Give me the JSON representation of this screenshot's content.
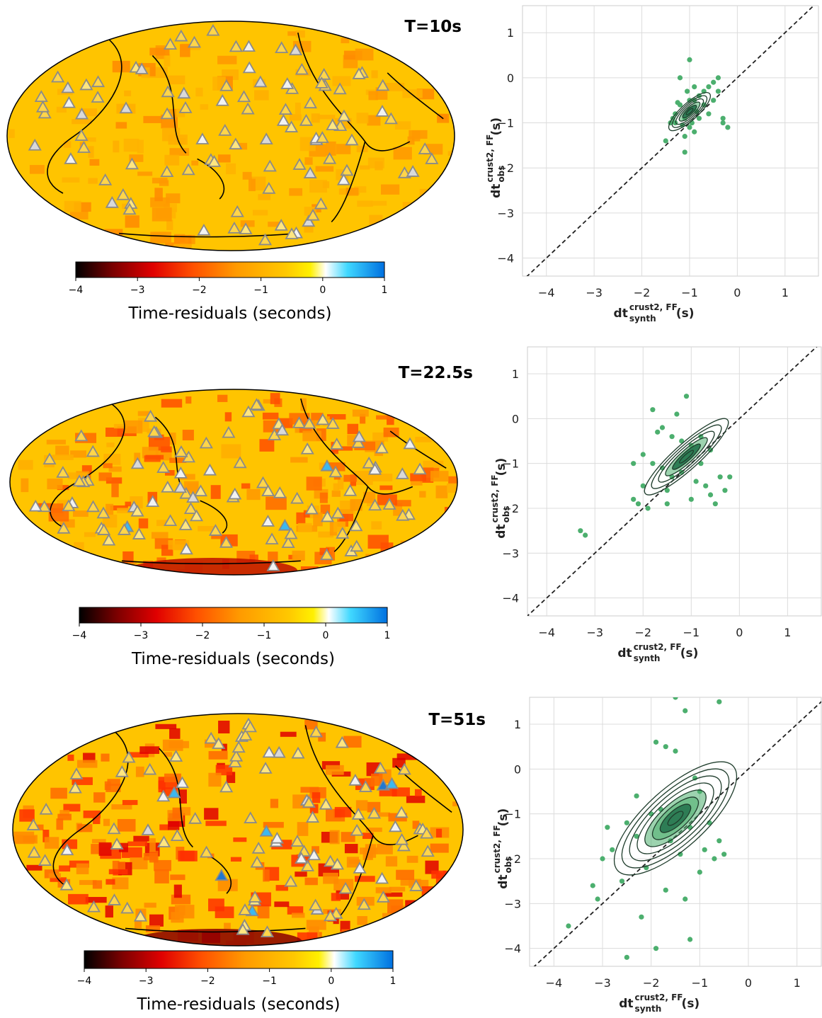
{
  "colorbar": {
    "label": "Time-residuals (seconds)",
    "ticks": [
      -4,
      -3,
      -2,
      -1,
      0,
      1
    ],
    "range": [
      -4,
      1
    ],
    "colors": [
      "#000000",
      "#7a0000",
      "#e00000",
      "#ff5000",
      "#ff9a00",
      "#ffc800",
      "#fff000",
      "#ffffff",
      "#40d8ff",
      "#00a8f0",
      "#0070e0"
    ]
  },
  "axis_label": {
    "x_main": "dt",
    "x_sup": "crust2, FF",
    "x_sub": "synth",
    "x_unit": "(s)",
    "y_main": "dt",
    "y_sup": "crust2, FF",
    "y_sub": "obs",
    "y_unit": "(s)"
  },
  "chart_data": [
    {
      "type": "scatter",
      "title": "T=10s",
      "xlabel": "dt_synth^{crust2, FF} (s)",
      "ylabel": "dt_obs^{crust2, FF} (s)",
      "xlim": [
        -4.5,
        1.7
      ],
      "ylim": [
        -4.4,
        1.6
      ],
      "xticks": [
        -4,
        -3,
        -2,
        -1,
        0,
        1
      ],
      "yticks": [
        -4,
        -3,
        -2,
        -1,
        0,
        1
      ],
      "grid": true,
      "reference_line": "y=x",
      "point_color": "#4caf6e",
      "points": [
        [
          -1.2,
          -0.6
        ],
        [
          -1.1,
          -0.9
        ],
        [
          -1.0,
          -0.7
        ],
        [
          -0.9,
          -0.5
        ],
        [
          -1.3,
          -1.0
        ],
        [
          -1.0,
          -1.1
        ],
        [
          -0.8,
          -0.4
        ],
        [
          -0.6,
          -0.2
        ],
        [
          -0.5,
          -0.1
        ],
        [
          -0.4,
          0.0
        ],
        [
          -0.3,
          -0.9
        ],
        [
          -0.2,
          -1.1
        ],
        [
          -0.3,
          -1.0
        ],
        [
          -1.1,
          -1.65
        ],
        [
          -1.5,
          -1.4
        ],
        [
          -1.0,
          0.4
        ],
        [
          -1.2,
          0.0
        ],
        [
          -0.9,
          -0.2
        ],
        [
          -0.7,
          -0.3
        ],
        [
          -1.3,
          -0.8
        ],
        [
          -1.4,
          -1.0
        ],
        [
          -1.1,
          -1.3
        ],
        [
          -0.9,
          -1.2
        ],
        [
          -0.8,
          -0.9
        ],
        [
          -0.6,
          -0.8
        ],
        [
          -0.5,
          -0.5
        ],
        [
          -1.25,
          -0.55
        ],
        [
          -1.05,
          -0.3
        ],
        [
          -0.85,
          -0.75
        ],
        [
          -1.15,
          -1.05
        ],
        [
          -0.95,
          -1.0
        ],
        [
          -0.7,
          -0.6
        ],
        [
          -1.35,
          -0.9
        ],
        [
          -0.4,
          -0.3
        ],
        [
          -1.0,
          -0.5
        ]
      ],
      "density_center": [
        -1.0,
        -0.75
      ]
    },
    {
      "type": "scatter",
      "title": "T=22.5s",
      "xlabel": "dt_synth^{crust2, FF} (s)",
      "ylabel": "dt_obs^{crust2, FF} (s)",
      "xlim": [
        -4.4,
        1.7
      ],
      "ylim": [
        -4.4,
        1.6
      ],
      "xticks": [
        -4,
        -3,
        -2,
        -1,
        0,
        1
      ],
      "yticks": [
        -4,
        -3,
        -2,
        -1,
        0,
        1
      ],
      "grid": true,
      "reference_line": "y=x",
      "point_color": "#4caf6e",
      "points": [
        [
          -3.3,
          -2.5
        ],
        [
          -3.2,
          -2.6
        ],
        [
          -2.2,
          -1.0
        ],
        [
          -2.1,
          -1.9
        ],
        [
          -2.0,
          -1.5
        ],
        [
          -1.9,
          -2.0
        ],
        [
          -1.8,
          0.2
        ],
        [
          -1.7,
          -0.3
        ],
        [
          -1.6,
          -1.1
        ],
        [
          -1.5,
          -1.6
        ],
        [
          -1.4,
          -0.4
        ],
        [
          -1.3,
          0.1
        ],
        [
          -1.2,
          -1.2
        ],
        [
          -1.1,
          0.5
        ],
        [
          -1.0,
          -0.6
        ],
        [
          -0.9,
          -1.4
        ],
        [
          -0.8,
          -1.0
        ],
        [
          -0.7,
          -1.5
        ],
        [
          -0.6,
          -1.7
        ],
        [
          -0.5,
          -1.9
        ],
        [
          -0.4,
          -1.3
        ],
        [
          -0.3,
          -1.6
        ],
        [
          -0.2,
          -1.3
        ],
        [
          -1.5,
          -1.9
        ],
        [
          -2.2,
          -1.8
        ],
        [
          -1.8,
          -1.0
        ],
        [
          -1.2,
          -0.5
        ],
        [
          -1.0,
          -1.8
        ],
        [
          -1.6,
          -0.2
        ],
        [
          -0.6,
          -0.7
        ],
        [
          -1.4,
          -1.3
        ],
        [
          -0.8,
          -0.4
        ],
        [
          -2.0,
          -0.8
        ]
      ],
      "density_center": [
        -1.1,
        -0.85
      ]
    },
    {
      "type": "scatter",
      "title": "T=51s",
      "xlabel": "dt_synth^{crust2, FF} (s)",
      "ylabel": "dt_obs^{crust2, FF} (s)",
      "xlim": [
        -4.5,
        1.5
      ],
      "ylim": [
        -4.4,
        1.6
      ],
      "xticks": [
        -4,
        -3,
        -2,
        -1,
        0,
        1
      ],
      "yticks": [
        -4,
        -3,
        -2,
        -1,
        0,
        1
      ],
      "grid": true,
      "reference_line": "y=x",
      "point_color": "#4caf6e",
      "points": [
        [
          -3.7,
          -3.5
        ],
        [
          -3.2,
          -2.6
        ],
        [
          -3.1,
          -2.9
        ],
        [
          -3.0,
          -2.0
        ],
        [
          -2.9,
          -1.3
        ],
        [
          -2.8,
          -1.8
        ],
        [
          -2.5,
          -4.2
        ],
        [
          -2.3,
          -0.6
        ],
        [
          -2.2,
          -3.3
        ],
        [
          -2.1,
          -2.2
        ],
        [
          -2.0,
          -1.0
        ],
        [
          -1.9,
          -4.0
        ],
        [
          -1.8,
          -0.9
        ],
        [
          -1.7,
          0.5
        ],
        [
          -1.6,
          -1.6
        ],
        [
          -1.5,
          0.4
        ],
        [
          -1.4,
          -1.9
        ],
        [
          -1.3,
          -2.9
        ],
        [
          -1.2,
          -3.8
        ],
        [
          -1.1,
          -0.2
        ],
        [
          -1.0,
          -2.3
        ],
        [
          -0.9,
          -1.8
        ],
        [
          -0.8,
          -1.2
        ],
        [
          -0.7,
          -2.0
        ],
        [
          -0.6,
          -1.6
        ],
        [
          -0.6,
          1.5
        ],
        [
          -1.3,
          1.3
        ],
        [
          -1.5,
          1.6
        ],
        [
          -1.9,
          0.6
        ],
        [
          -2.5,
          -1.2
        ],
        [
          -2.6,
          -2.5
        ],
        [
          -1.0,
          -0.5
        ],
        [
          -0.5,
          -1.9
        ],
        [
          -1.7,
          -2.7
        ],
        [
          -2.3,
          -1.5
        ],
        [
          -1.2,
          -1.3
        ]
      ],
      "density_center": [
        -1.5,
        -1.1
      ]
    }
  ]
}
